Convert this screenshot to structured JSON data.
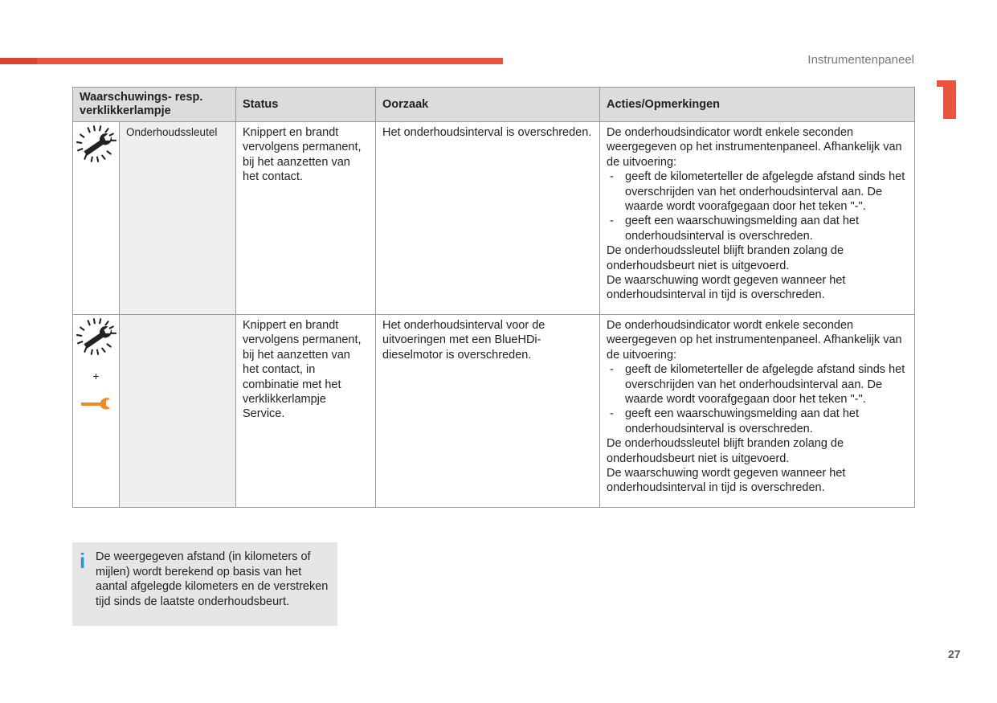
{
  "header": {
    "section": "Instrumentenpaneel",
    "chapter": "1",
    "page": "27",
    "accent": "#e8543f"
  },
  "table": {
    "headers": [
      "Waarschuwings- resp. verklikkerlampje",
      "Status",
      "Oorzaak",
      "Acties/Opmerkingen"
    ],
    "rows": [
      {
        "icons": [
          "wrench-flashing-icon"
        ],
        "name": "Onderhoudssleutel",
        "status": "Knippert en brandt vervolgens permanent, bij het aanzetten van het contact.",
        "cause": "Het onderhoudsinterval is overschreden.",
        "actions": {
          "intro": "De onderhoudsindicator wordt enkele seconden weergegeven op het instrumentenpaneel. Afhankelijk van de uitvoering:",
          "bullets": [
            "geeft de kilometerteller de afgelegde afstand sinds het overschrijden van het onderhoudsinterval aan. De waarde wordt voorafgegaan door het teken \"-\".",
            "geeft een waarschuwingsmelding aan dat het onderhoudsinterval is overschreden."
          ],
          "outro": "De onderhoudssleutel blijft branden zolang de onderhoudsbeurt niet is uitgevoerd.",
          "outro2": "De waarschuwing wordt gegeven wanneer het onderhoudsinterval in tijd is overschreden."
        }
      },
      {
        "icons": [
          "wrench-flashing-icon",
          "wrench-orange-icon"
        ],
        "plus": "+",
        "name": "",
        "status": "Knippert en brandt vervolgens permanent, bij het aanzetten van het contact, in combinatie met het verklikkerlampje Service.",
        "cause": "Het onderhoudsinterval voor de uitvoeringen met een BlueHDi-dieselmotor is overschreden.",
        "actions": {
          "intro": "De onderhoudsindicator wordt enkele seconden weergegeven op het instrumentenpaneel. Afhankelijk van de uitvoering:",
          "bullets": [
            "geeft de kilometerteller de afgelegde afstand sinds het overschrijden van het onderhoudsinterval aan. De waarde wordt voorafgegaan door het teken \"-\".",
            "geeft een waarschuwingsmelding aan dat het onderhoudsinterval is overschreden."
          ],
          "outro": "De onderhoudssleutel blijft branden zolang de onderhoudsbeurt niet is uitgevoerd.",
          "outro2": "De waarschuwing wordt gegeven wanneer het onderhoudsinterval in tijd is overschreden."
        }
      }
    ]
  },
  "info": {
    "icon": "info-icon",
    "text": "De weergegeven afstand (in kilometers of mijlen) wordt berekend op basis van het aantal afgelegde kilometers en de verstreken tijd sinds de laatste onderhoudsbeurt.",
    "icon_color": "#1a9ad6"
  }
}
